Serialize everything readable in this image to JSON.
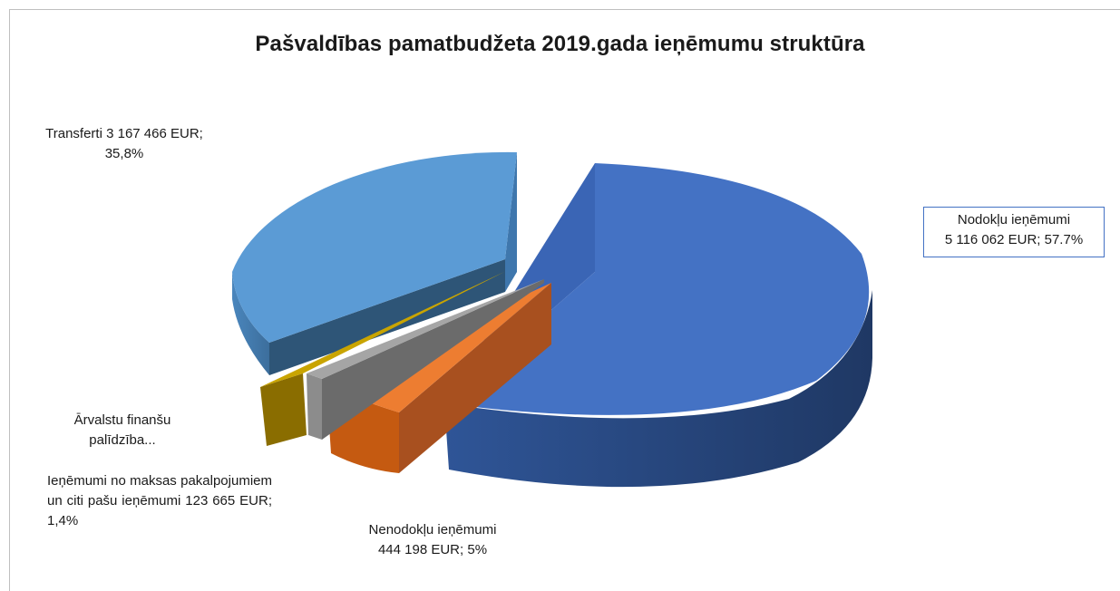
{
  "chart_data": {
    "type": "pie",
    "title": "Pašvaldības pamatbudžeta 2019.gada ieņēmumu struktūra",
    "slices": [
      {
        "name": "Nodokļu ieņēmumi",
        "value": 5116062,
        "percent": 57.7,
        "color": "#4472c4"
      },
      {
        "name": "Nenodokļu ieņēmumi",
        "value": 444198,
        "percent": 5.0,
        "color": "#ed7d31"
      },
      {
        "name": "Ieņēmumi no maksas pakalpojumiem un citi pašu ieņēmumi",
        "value": 123665,
        "percent": 1.4,
        "color": "#a5a5a5"
      },
      {
        "name": "Ārvalstu finanšu palīdzība",
        "percent": 0.1,
        "color": "#c9a400"
      },
      {
        "name": "Transferti",
        "value": 3167466,
        "percent": 35.8,
        "color": "#5b9bd5"
      }
    ],
    "labels": {
      "nodoklu": [
        "Nodokļu ieņēmumi",
        "5 116 062 EUR; 57.7%"
      ],
      "transferti": [
        "Transferti 3 167 466 EUR;",
        "35,8%"
      ],
      "arvalstu": [
        "Ārvalstu finanšu",
        "palīdzība..."
      ],
      "ienemumi": "Ieņēmumi no maksas pakalpojumiem un citi pašu ieņēmumi 123 665 EUR; 1,4%",
      "nenodoklu": [
        "Nenodokļu ieņēmumi",
        "444 198 EUR; 5%"
      ]
    }
  }
}
